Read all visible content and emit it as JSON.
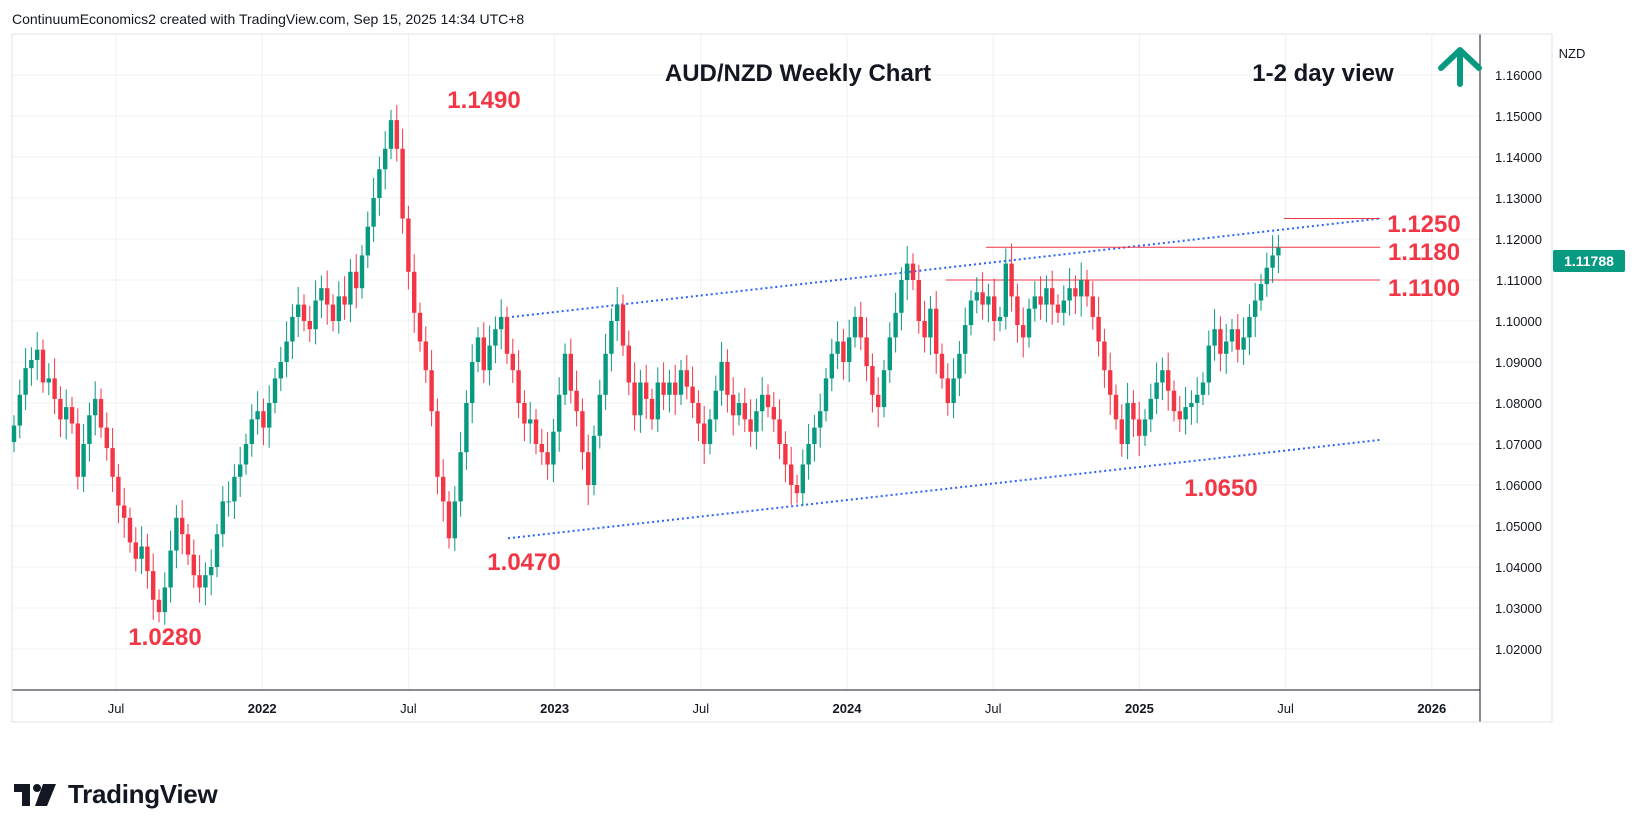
{
  "header": {
    "credit": "ContinuumEconomics2 created with TradingView.com, Sep 15, 2025 14:34 UTC+8"
  },
  "footer": {
    "brand": "TradingView",
    "logo_icon": "tradingview-logo-icon"
  },
  "colors": {
    "up": "#089981",
    "down": "#f23645",
    "annotation": "#f23645",
    "trendline": "#2962ff",
    "arrow": "#089981",
    "last_price_bg": "#089981"
  },
  "chart_data": {
    "type": "candlestick",
    "title": "AUD/NZD Weekly Chart",
    "subtitle": "1-2 day view",
    "view_arrow": "up-arrow-icon",
    "currency_label": "NZD",
    "ylim": [
      1.01,
      1.17
    ],
    "y_ticks": [
      "1.16000",
      "1.15000",
      "1.14000",
      "1.13000",
      "1.12000",
      "1.11000",
      "1.10000",
      "1.09000",
      "1.08000",
      "1.07000",
      "1.06000",
      "1.05000",
      "1.04000",
      "1.03000",
      "1.02000"
    ],
    "x_ticks": [
      "Jul",
      "2022",
      "Jul",
      "2023",
      "Jul",
      "2024",
      "Jul",
      "2025",
      "Jul",
      "2026"
    ],
    "last_price": "1.11788",
    "price_annotations": [
      "1.1490",
      "1.0280",
      "1.0470",
      "1.0650",
      "1.1250",
      "1.1180",
      "1.1100"
    ],
    "horizontal_levels": [
      1.125,
      1.118,
      1.11
    ],
    "channel": {
      "upper": [
        1.101,
        1.125
      ],
      "lower": [
        1.047,
        1.071
      ]
    },
    "series": [
      {
        "name": "AUD/NZD",
        "closes": [
          1.0745,
          1.082,
          1.0885,
          1.0905,
          1.093,
          1.085,
          1.086,
          1.081,
          1.076,
          1.079,
          1.075,
          1.062,
          1.07,
          1.077,
          1.081,
          1.074,
          1.069,
          1.062,
          1.055,
          1.052,
          1.046,
          1.042,
          1.045,
          1.039,
          1.032,
          1.029,
          1.035,
          1.044,
          1.052,
          1.048,
          1.043,
          1.038,
          1.035,
          1.038,
          1.04,
          1.048,
          1.056,
          1.056,
          1.062,
          1.065,
          1.07,
          1.076,
          1.078,
          1.074,
          1.08,
          1.086,
          1.09,
          1.095,
          1.101,
          1.104,
          1.1,
          1.098,
          1.105,
          1.108,
          1.104,
          1.1,
          1.106,
          1.104,
          1.112,
          1.108,
          1.116,
          1.123,
          1.13,
          1.137,
          1.142,
          1.149,
          1.142,
          1.125,
          1.112,
          1.102,
          1.095,
          1.088,
          1.078,
          1.062,
          1.056,
          1.047,
          1.056,
          1.068,
          1.08,
          1.09,
          1.096,
          1.088,
          1.094,
          1.098,
          1.101,
          1.092,
          1.088,
          1.08,
          1.075,
          1.076,
          1.07,
          1.068,
          1.065,
          1.073,
          1.082,
          1.092,
          1.083,
          1.078,
          1.068,
          1.06,
          1.072,
          1.082,
          1.092,
          1.1,
          1.104,
          1.094,
          1.085,
          1.077,
          1.085,
          1.081,
          1.076,
          1.085,
          1.082,
          1.085,
          1.082,
          1.088,
          1.084,
          1.08,
          1.075,
          1.07,
          1.076,
          1.083,
          1.09,
          1.082,
          1.077,
          1.08,
          1.076,
          1.073,
          1.078,
          1.082,
          1.079,
          1.076,
          1.07,
          1.065,
          1.06,
          1.058,
          1.065,
          1.07,
          1.074,
          1.078,
          1.086,
          1.092,
          1.095,
          1.09,
          1.096,
          1.101,
          1.096,
          1.089,
          1.082,
          1.079,
          1.088,
          1.096,
          1.102,
          1.11,
          1.114,
          1.11,
          1.1,
          1.096,
          1.103,
          1.092,
          1.086,
          1.08,
          1.086,
          1.092,
          1.099,
          1.105,
          1.107,
          1.104,
          1.106,
          1.1,
          1.101,
          1.114,
          1.106,
          1.099,
          1.096,
          1.103,
          1.106,
          1.104,
          1.108,
          1.104,
          1.102,
          1.105,
          1.108,
          1.106,
          1.11,
          1.106,
          1.101,
          1.095,
          1.088,
          1.082,
          1.076,
          1.07,
          1.08,
          1.076,
          1.072,
          1.076,
          1.081,
          1.085,
          1.088,
          1.083,
          1.078,
          1.076,
          1.079,
          1.08,
          1.082,
          1.085,
          1.094,
          1.098,
          1.092,
          1.095,
          1.098,
          1.093,
          1.096,
          1.101,
          1.105,
          1.109,
          1.113,
          1.116,
          1.1179
        ]
      }
    ]
  }
}
